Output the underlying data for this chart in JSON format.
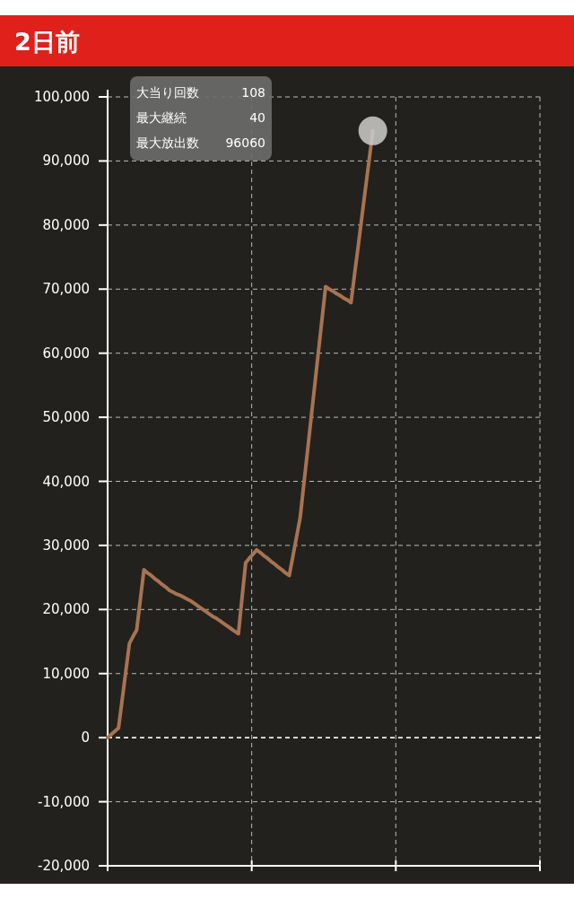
{
  "chart_data": {
    "type": "line",
    "title": "2日前",
    "annotations": [
      "大当り回数",
      "108",
      "最大継続",
      "40",
      "最大放出数",
      "96060"
    ],
    "categories": [
      null,
      null,
      null,
      null,
      null,
      null,
      null,
      null,
      null,
      null,
      null,
      null,
      null,
      null,
      null,
      null,
      null,
      null,
      null,
      null,
      null,
      null,
      null,
      null,
      null,
      null,
      null,
      null,
      null,
      null,
      null,
      null,
      null,
      null,
      null,
      null,
      null,
      null,
      null,
      null,
      null,
      null,
      null,
      null,
      null,
      null,
      null,
      null,
      null,
      null,
      null,
      null,
      null,
      null,
      null,
      null,
      null,
      null,
      null,
      null,
      null,
      null,
      null,
      null,
      null,
      null,
      null,
      null,
      null,
      null,
      null,
      null,
      null,
      null
    ],
    "series": [
      {
        "color": "#a87352",
        "values": [
          0,
          500,
          1000,
          1500,
          5900,
          10300,
          14700,
          15800,
          16800,
          21500,
          26200,
          25700,
          25300,
          24800,
          24400,
          23900,
          23500,
          23000,
          22700,
          22400,
          22200,
          21900,
          21600,
          21300,
          20900,
          20500,
          20100,
          19700,
          19300,
          18900,
          18600,
          18200,
          17800,
          17400,
          17000,
          16600,
          16200,
          21800,
          27300,
          28000,
          28600,
          29300,
          28900,
          28400,
          28000,
          27500,
          27100,
          26600,
          26200,
          25700,
          25300,
          28300,
          31300,
          34300,
          39500,
          44600,
          49800,
          54900,
          60100,
          65200,
          70400,
          70000,
          69700,
          69300,
          69000,
          68600,
          68300,
          67900,
          72400,
          76800,
          81300,
          85800,
          90200,
          94700
        ]
      }
    ],
    "ylim": [
      -20000,
      100000
    ],
    "yticks": [
      {
        "value": -20000,
        "label": "-20,000"
      },
      {
        "value": -10000,
        "label": "-10,000"
      },
      {
        "value": 0,
        "label": "0"
      },
      {
        "value": 10000,
        "label": "10,000"
      },
      {
        "value": 20000,
        "label": "20,000"
      },
      {
        "value": 30000,
        "label": "30,000"
      },
      {
        "value": 40000,
        "label": "40,000"
      },
      {
        "value": 50000,
        "label": "50,000"
      },
      {
        "value": 60000,
        "label": "60,000"
      },
      {
        "value": 70000,
        "label": "70,000"
      },
      {
        "value": 80000,
        "label": "80,000"
      },
      {
        "value": 90000,
        "label": "90,000"
      },
      {
        "value": 100000,
        "label": "100,000"
      }
    ],
    "ref_lines": [
      {
        "axis": "y",
        "value": 0,
        "color": "#ffffff",
        "line_style": "dashed"
      }
    ],
    "grid": true,
    "tick_labels": "y",
    "marker": "none",
    "line_style": "solid"
  }
}
